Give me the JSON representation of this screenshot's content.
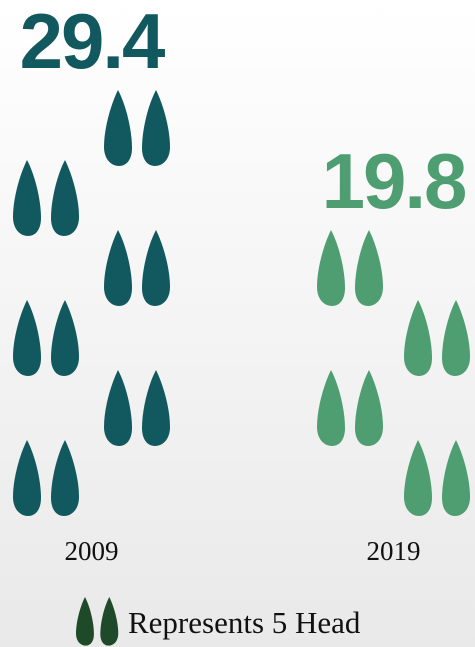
{
  "chart_data": {
    "type": "pictograph",
    "categories": [
      "2009",
      "2019"
    ],
    "values": [
      29.4,
      19.8
    ],
    "colors": [
      "#12585f",
      "#4e9e72"
    ],
    "unit": 5,
    "legend": "Represents 5 Head",
    "legend_color": "#1f4a2a"
  }
}
